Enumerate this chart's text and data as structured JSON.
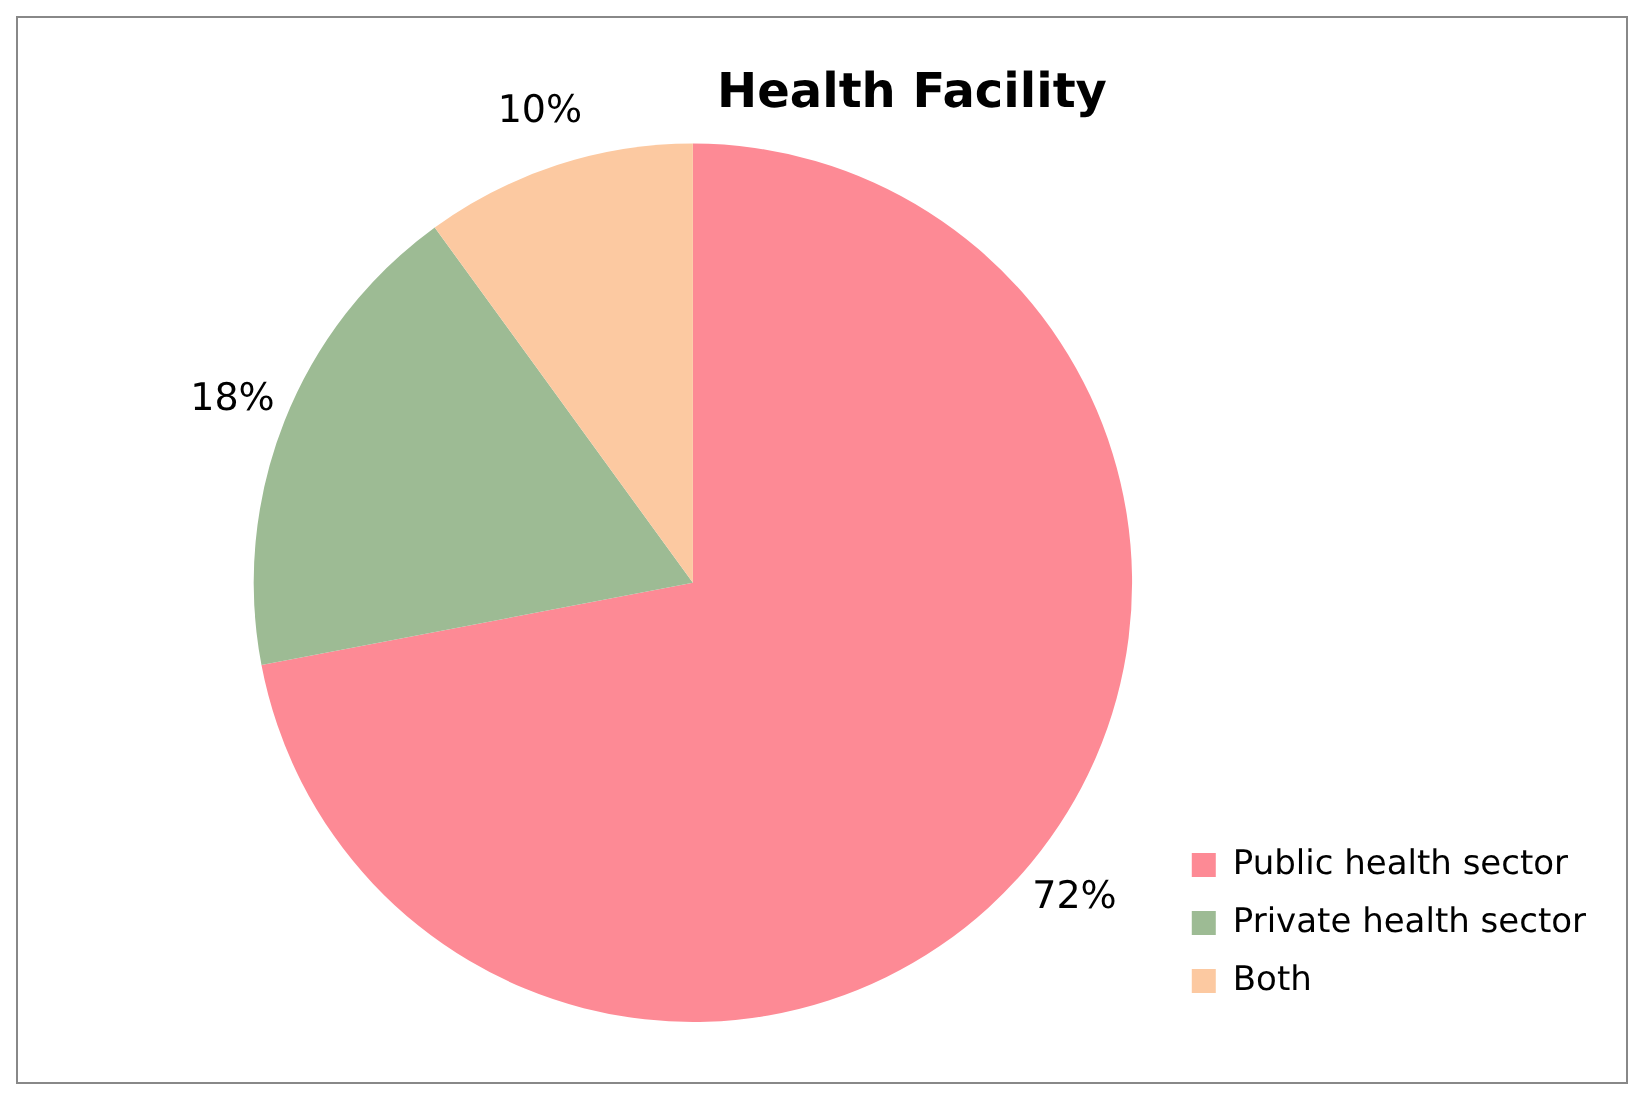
{
  "chart_data": {
    "type": "pie",
    "title": "Health Facility",
    "categories": [
      "Public health sector",
      "Private health sector",
      "Both"
    ],
    "values": [
      72,
      18,
      10
    ],
    "colors": [
      "#fd8a95",
      "#9dbb94",
      "#fcc9a1"
    ],
    "value_labels": [
      "72%",
      "18%",
      "10%"
    ],
    "legend": "bottom right"
  }
}
